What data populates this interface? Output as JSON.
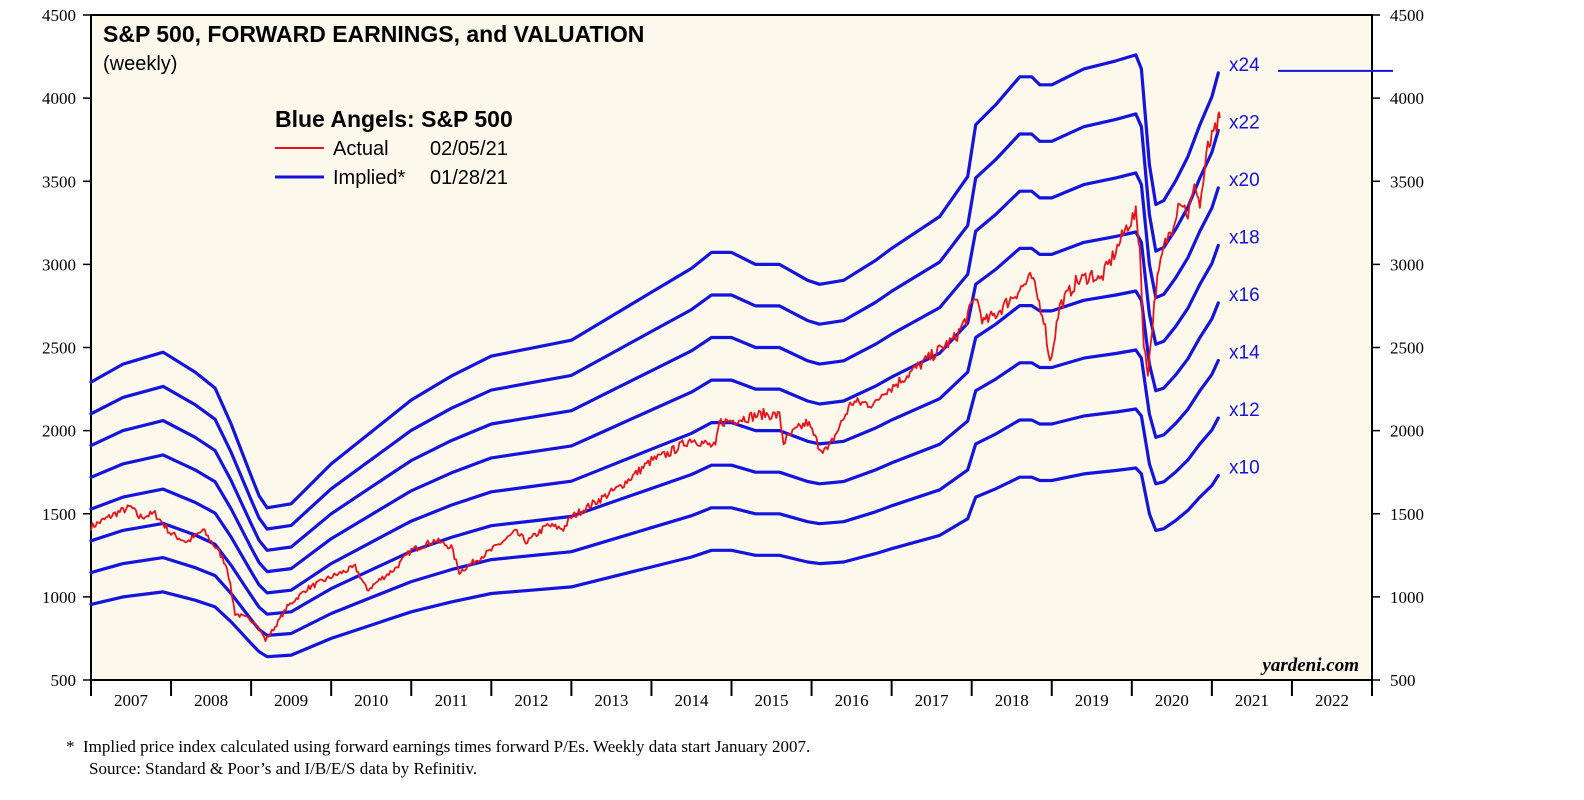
{
  "chart_data": {
    "type": "line",
    "title": "S&P 500, FORWARD EARNINGS, and VALUATION",
    "subtitle": "(weekly)",
    "legend": {
      "title": "Blue Angels: S&P 500",
      "placement": "top-left",
      "entries": [
        {
          "label": "Actual",
          "date": "02/05/21",
          "color": "#e8141b"
        },
        {
          "label": "Implied*",
          "date": "01/28/21",
          "color": "#1414dc"
        }
      ]
    },
    "x_range": [
      2007,
      2023
    ],
    "x_ticks": [
      "2007",
      "2008",
      "2009",
      "2010",
      "2011",
      "2012",
      "2013",
      "2014",
      "2015",
      "2016",
      "2017",
      "2018",
      "2019",
      "2020",
      "2021",
      "2022"
    ],
    "ylim": [
      500,
      4500
    ],
    "y_ticks": [
      500,
      1000,
      1500,
      2000,
      2500,
      3000,
      3500,
      4000,
      4500
    ],
    "forward_earnings": {
      "x": [
        2007.0,
        2007.4,
        2007.9,
        2008.3,
        2008.55,
        2008.75,
        2009.0,
        2009.1,
        2009.2,
        2009.5,
        2010.0,
        2010.5,
        2011.0,
        2011.5,
        2012.0,
        2012.5,
        2013.0,
        2013.5,
        2014.0,
        2014.5,
        2014.75,
        2015.0,
        2015.3,
        2015.6,
        2015.95,
        2016.1,
        2016.4,
        2016.8,
        2017.0,
        2017.6,
        2017.95,
        2018.05,
        2018.3,
        2018.6,
        2018.75,
        2018.85,
        2019.0,
        2019.4,
        2019.8,
        2020.05,
        2020.12,
        2020.22,
        2020.3,
        2020.4,
        2020.55,
        2020.7,
        2020.85,
        2021.0,
        2021.08
      ],
      "y": [
        95.5,
        100,
        103,
        98,
        94,
        85,
        72,
        67,
        64,
        65,
        75,
        83,
        91,
        97,
        102,
        104,
        106,
        112,
        118,
        124,
        128,
        128,
        125,
        125,
        121,
        120,
        121,
        126,
        129,
        137,
        147,
        160,
        165,
        172,
        172,
        170,
        170,
        174,
        176,
        177.5,
        174,
        150,
        140,
        141,
        146,
        152,
        160,
        167,
        173
      ]
    },
    "series": [
      {
        "name": "x24",
        "multiplier": 24,
        "color": "#1414dc"
      },
      {
        "name": "x22",
        "multiplier": 22,
        "color": "#1414dc"
      },
      {
        "name": "x20",
        "multiplier": 20,
        "color": "#1414dc"
      },
      {
        "name": "x18",
        "multiplier": 18,
        "color": "#1414dc"
      },
      {
        "name": "x16",
        "multiplier": 16,
        "color": "#1414dc"
      },
      {
        "name": "x14",
        "multiplier": 14,
        "color": "#1414dc"
      },
      {
        "name": "x12",
        "multiplier": 12,
        "color": "#1414dc"
      },
      {
        "name": "x10",
        "multiplier": 10,
        "color": "#1414dc"
      }
    ],
    "actual": {
      "name": "Actual",
      "color": "#e8141b",
      "x": [
        2007.0,
        2007.3,
        2007.5,
        2007.6,
        2007.8,
        2008.0,
        2008.2,
        2008.4,
        2008.6,
        2008.7,
        2008.8,
        2008.95,
        2009.05,
        2009.18,
        2009.3,
        2009.45,
        2009.7,
        2010.0,
        2010.3,
        2010.45,
        2010.6,
        2010.8,
        2011.0,
        2011.3,
        2011.5,
        2011.6,
        2011.75,
        2011.9,
        2012.0,
        2012.3,
        2012.45,
        2012.7,
        2012.9,
        2013.0,
        2013.4,
        2013.6,
        2013.9,
        2014.0,
        2014.2,
        2014.5,
        2014.8,
        2014.85,
        2015.0,
        2015.4,
        2015.6,
        2015.65,
        2015.8,
        2015.95,
        2016.1,
        2016.2,
        2016.5,
        2016.8,
        2016.9,
        2017.0,
        2017.5,
        2017.8,
        2017.95,
        2018.05,
        2018.15,
        2018.3,
        2018.6,
        2018.75,
        2018.9,
        2018.98,
        2019.1,
        2019.3,
        2019.5,
        2019.6,
        2019.8,
        2019.95,
        2020.05,
        2020.1,
        2020.15,
        2020.2,
        2020.22,
        2020.3,
        2020.4,
        2020.5,
        2020.6,
        2020.7,
        2020.8,
        2020.85,
        2020.95,
        2021.0,
        2021.08,
        2021.1
      ],
      "y": [
        1420,
        1500,
        1540,
        1480,
        1500,
        1380,
        1330,
        1400,
        1270,
        1180,
        900,
        870,
        850,
        740,
        820,
        940,
        1050,
        1120,
        1180,
        1040,
        1100,
        1170,
        1280,
        1340,
        1300,
        1150,
        1200,
        1250,
        1280,
        1390,
        1330,
        1430,
        1410,
        1480,
        1600,
        1660,
        1780,
        1820,
        1860,
        1950,
        1900,
        2050,
        2060,
        2100,
        2090,
        1930,
        2000,
        2050,
        1900,
        1880,
        2170,
        2160,
        2240,
        2260,
        2450,
        2560,
        2690,
        2810,
        2650,
        2700,
        2850,
        2920,
        2680,
        2410,
        2750,
        2890,
        2940,
        2900,
        3080,
        3240,
        3300,
        3100,
        2500,
        2350,
        2440,
        2850,
        3100,
        3220,
        3400,
        3300,
        3480,
        3350,
        3700,
        3750,
        3850,
        3880
      ]
    },
    "footnote": {
      "marker": "*",
      "line1": "Implied price index calculated using forward earnings times forward P/Es. Weekly data start January 2007.",
      "line2": "Source: Standard & Poor’s and I/B/E/S data by Refinitiv."
    },
    "watermark": "yardeni.com",
    "colors": {
      "background": "#fdf8ec",
      "implied": "#1414dc",
      "actual": "#e8141b",
      "axis": "#000000"
    }
  }
}
